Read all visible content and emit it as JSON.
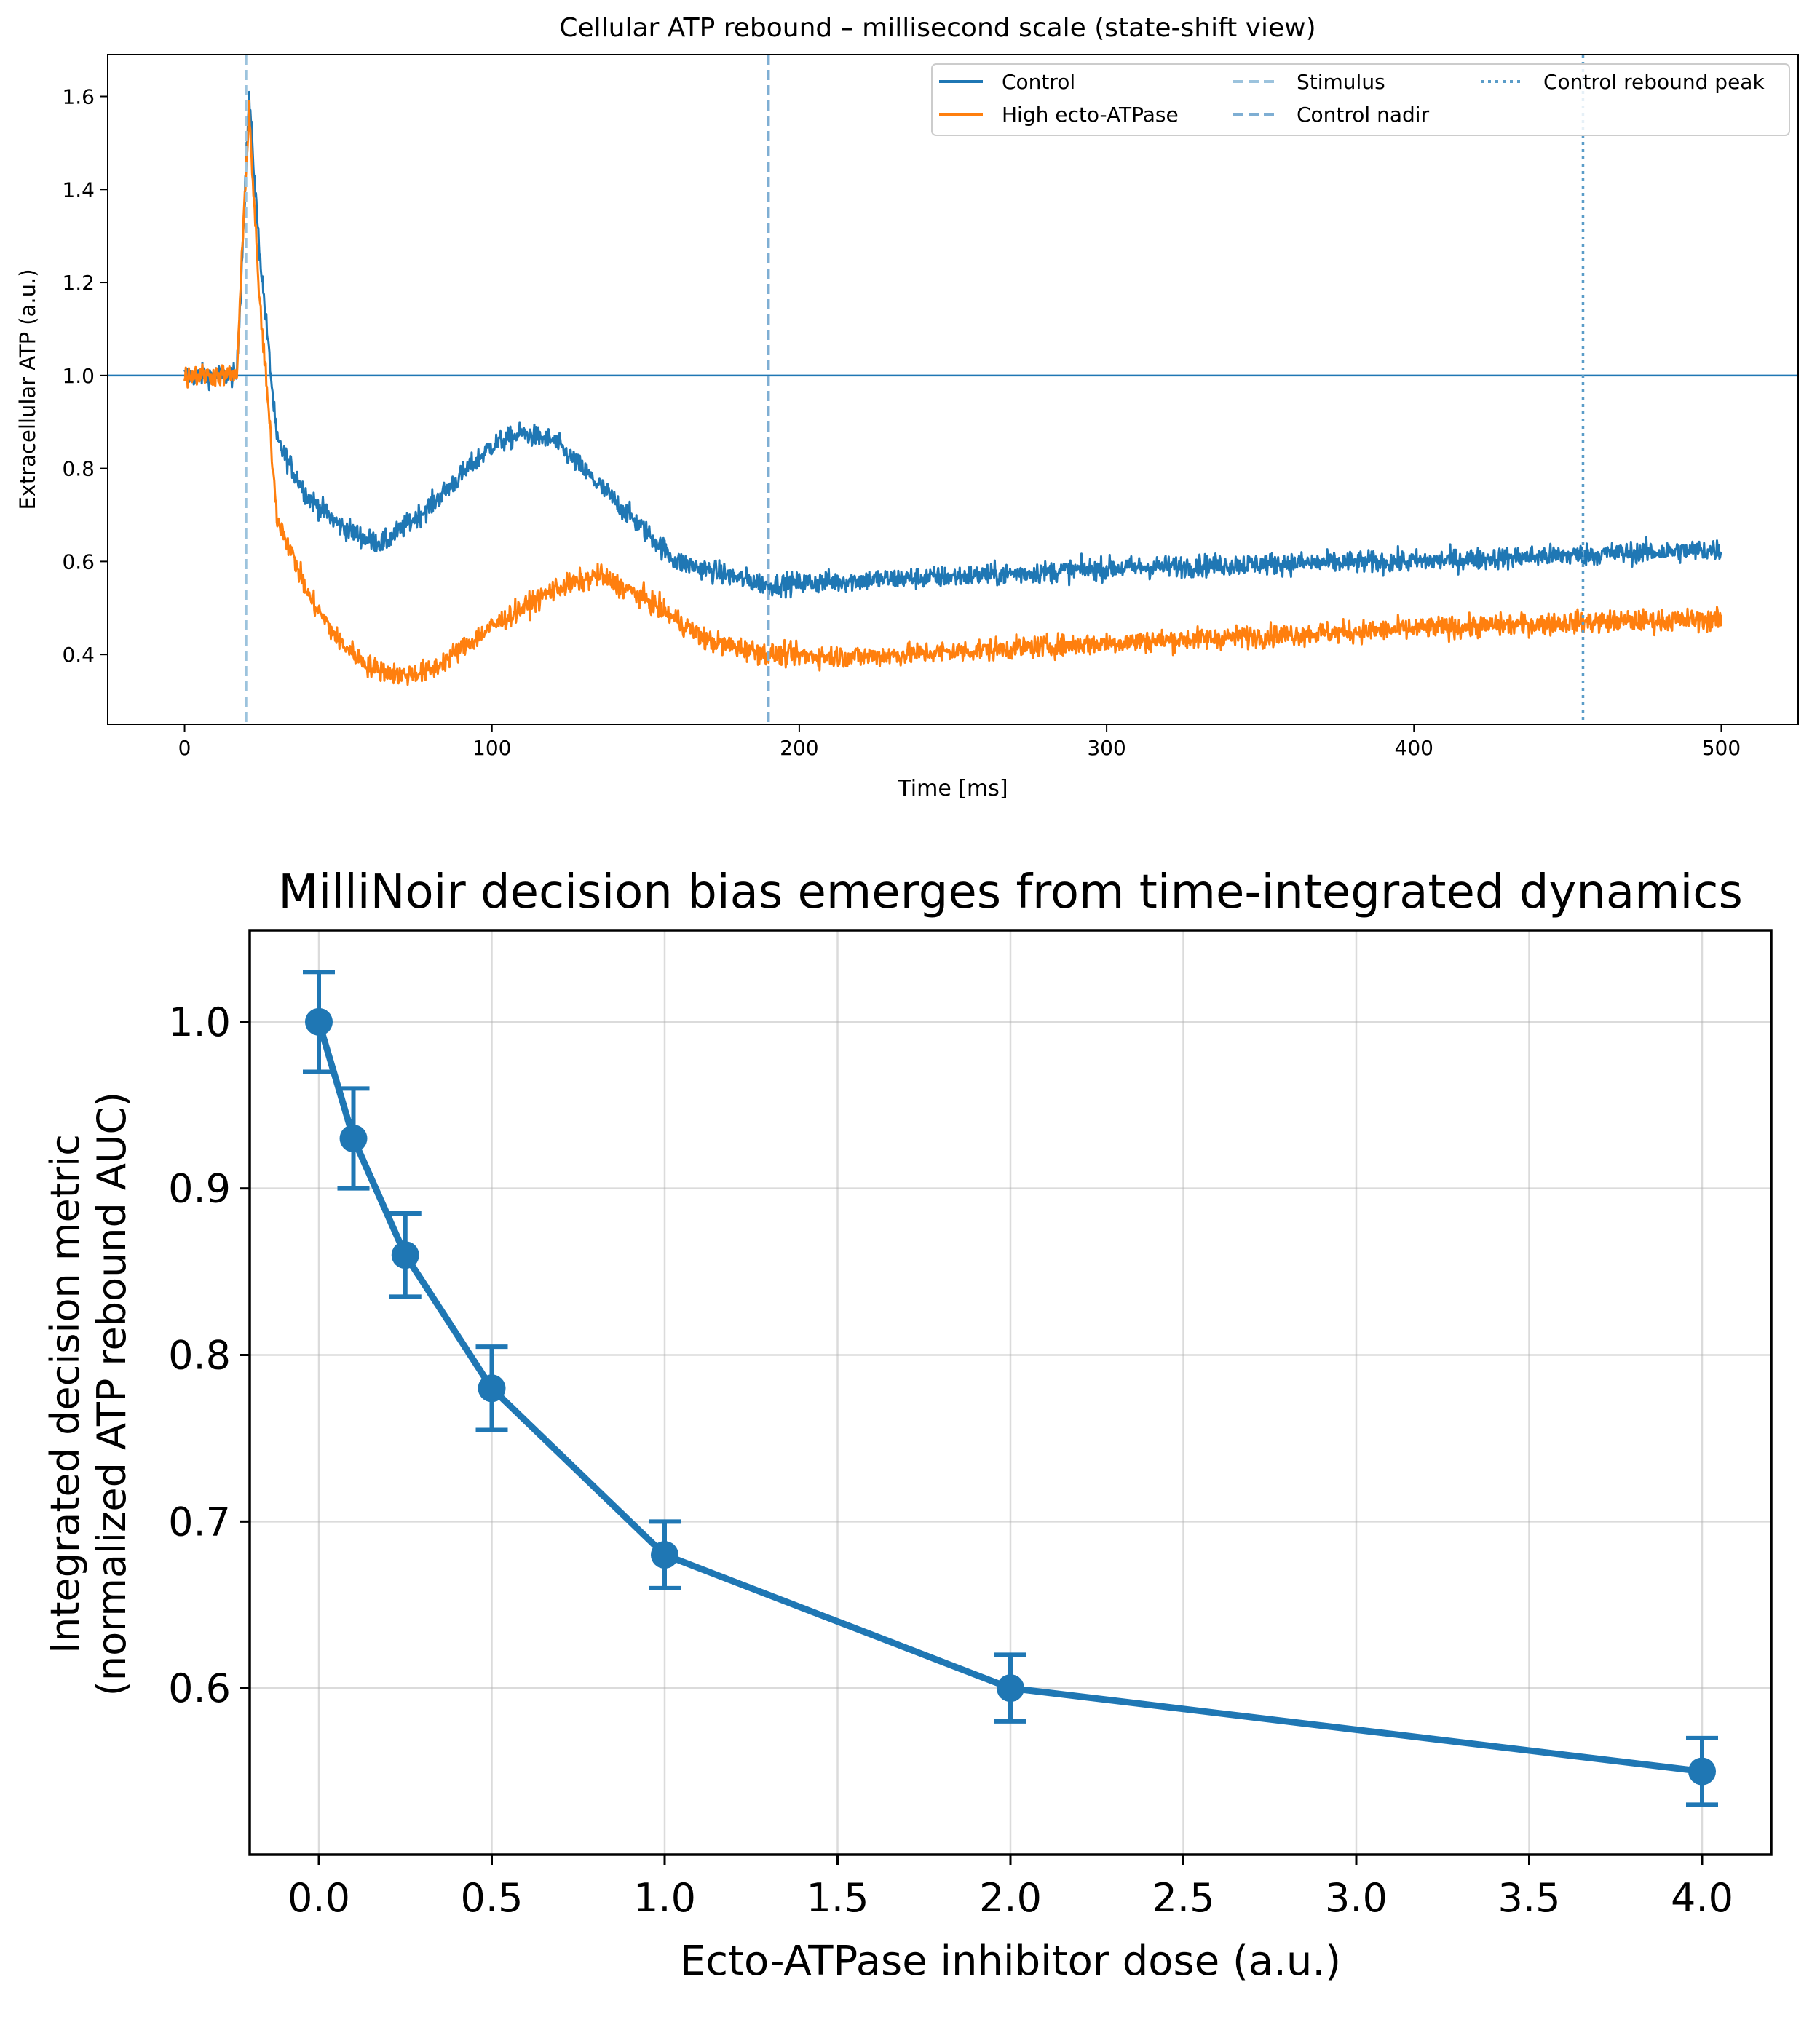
{
  "colors": {
    "control": "#1f77b4",
    "high": "#ff7f0e",
    "stim": "#9cc3dd",
    "nadir": "#7eaed3",
    "peak": "#5a9cc8"
  },
  "chart_data": [
    {
      "type": "line",
      "title": "Cellular ATP rebound – millisecond scale (state-shift view)",
      "xlabel": "Time [ms]",
      "ylabel": "Extracellular ATP (a.u.)",
      "xlim": [
        -25,
        525
      ],
      "ylim": [
        0.25,
        1.69
      ],
      "xticks": [
        0,
        100,
        200,
        300,
        400,
        500
      ],
      "yticks": [
        0.4,
        0.6,
        0.8,
        1.0,
        1.2,
        1.4,
        1.6
      ],
      "grid": false,
      "legend_position": "top-right",
      "series": [
        {
          "name": "Control",
          "color": "#1f77b4",
          "noise": 0.012,
          "x": [
            0,
            17,
            20,
            21,
            24,
            30,
            40,
            50,
            60,
            65,
            80,
            100,
            110,
            120,
            140,
            160,
            180,
            190,
            220,
            260,
            300,
            350,
            400,
            455,
            500
          ],
          "y": [
            1.0,
            1.0,
            1.45,
            1.6,
            1.3,
            0.86,
            0.74,
            0.68,
            0.645,
            0.64,
            0.72,
            0.85,
            0.875,
            0.86,
            0.73,
            0.6,
            0.565,
            0.55,
            0.56,
            0.57,
            0.585,
            0.595,
            0.6,
            0.615,
            0.625
          ]
        },
        {
          "name": "High ecto-ATPase",
          "color": "#ff7f0e",
          "noise": 0.012,
          "x": [
            0,
            17,
            20,
            21,
            24,
            30,
            40,
            50,
            60,
            70,
            80,
            100,
            120,
            135,
            150,
            170,
            190,
            220,
            260,
            300,
            350,
            400,
            455,
            500
          ],
          "y": [
            1.0,
            1.0,
            1.45,
            1.57,
            1.2,
            0.7,
            0.53,
            0.43,
            0.375,
            0.355,
            0.365,
            0.46,
            0.54,
            0.57,
            0.52,
            0.43,
            0.4,
            0.395,
            0.41,
            0.425,
            0.44,
            0.455,
            0.47,
            0.475
          ]
        }
      ],
      "reference_lines": [
        {
          "name": "Stimulus",
          "orientation": "vertical",
          "x": 20,
          "style": "dashed",
          "color": "#9cc3dd"
        },
        {
          "name": "Control nadir",
          "orientation": "vertical",
          "x": 190,
          "style": "dashed",
          "color": "#7eaed3"
        },
        {
          "name": "Control rebound peak",
          "orientation": "vertical",
          "x": 455,
          "style": "dotted",
          "color": "#5a9cc8"
        },
        {
          "name": "",
          "orientation": "horizontal",
          "y": 1.0,
          "style": "solid",
          "color": "#1f77b4"
        }
      ]
    },
    {
      "type": "line",
      "title": "MilliNoir decision bias emerges from time-integrated dynamics",
      "xlabel": "Ecto-ATPase inhibitor dose (a.u.)",
      "ylabel": "Integrated decision metric",
      "ylabel2": "(normalized ATP rebound AUC)",
      "xlim": [
        -0.2,
        4.2
      ],
      "ylim": [
        0.5,
        1.055
      ],
      "xticks": [
        0.0,
        0.5,
        1.0,
        1.5,
        2.0,
        2.5,
        3.0,
        3.5,
        4.0
      ],
      "xtick_labels": [
        "0.0",
        "0.5",
        "1.0",
        "1.5",
        "2.0",
        "2.5",
        "3.0",
        "3.5",
        "4.0"
      ],
      "yticks": [
        0.6,
        0.7,
        0.8,
        0.9,
        1.0
      ],
      "ytick_labels": [
        "0.6",
        "0.7",
        "0.8",
        "0.9",
        "1.0"
      ],
      "grid": true,
      "color": "#1f77b4",
      "x": [
        0.0,
        0.1,
        0.25,
        0.5,
        1.0,
        2.0,
        4.0
      ],
      "y": [
        1.0,
        0.93,
        0.86,
        0.78,
        0.68,
        0.6,
        0.55
      ],
      "yerr": [
        0.03,
        0.03,
        0.025,
        0.025,
        0.02,
        0.02,
        0.02
      ]
    }
  ]
}
